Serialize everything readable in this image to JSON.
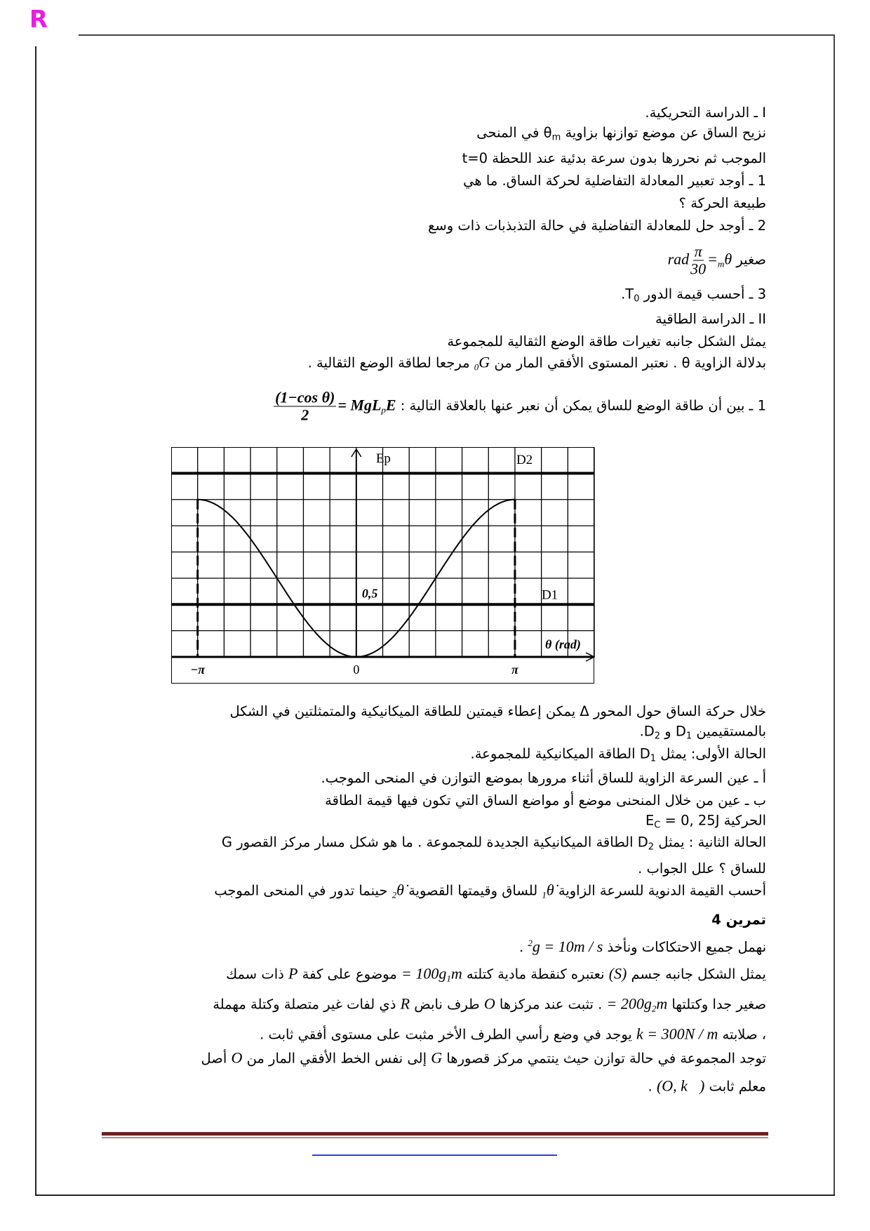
{
  "header": {
    "logo": "R"
  },
  "colors": {
    "logo": "#e81ee0",
    "footer_rule": "#6b2123",
    "link_rule": "#2a3ef0"
  },
  "lines": [
    {
      "segs": [
        {
          "k": "t",
          "v": "I ـ الدراسة التحريكية."
        }
      ]
    },
    {
      "segs": [
        {
          "k": "t",
          "v": "نزيح الساق عن موضع توازنها بزاوية "
        },
        {
          "k": "t",
          "v": "θ"
        },
        {
          "k": "sub",
          "v": "m"
        },
        {
          "k": "t",
          "v": " في المنحى"
        }
      ]
    },
    {
      "segs": [
        {
          "k": "t",
          "v": "الموجب ثم نحررها بدون سرعة بدئية عند اللحظة "
        },
        {
          "k": "t",
          "v": "t=0"
        }
      ]
    },
    {
      "segs": [
        {
          "k": "t",
          "v": "1 ـ أوجد تعبير المعادلة التفاضلية لحركة الساق. ما هي"
        }
      ]
    },
    {
      "segs": [
        {
          "k": "t",
          "v": "طبيعة الحركة ؟"
        }
      ]
    },
    {
      "segs": [
        {
          "k": "t",
          "v": "2 ـ أوجد حل للمعادلة التفاضلية في حالة التذبذبات ذات وسع"
        }
      ]
    },
    {
      "segs": [
        {
          "k": "t",
          "v": "صغير "
        },
        {
          "k": "m",
          "v": "θ"
        },
        {
          "k": "msub",
          "v": "m"
        },
        {
          "k": "m",
          "v": " = "
        },
        {
          "k": "frac",
          "num": "π",
          "den": "30"
        },
        {
          "k": "m",
          "v": "rad"
        }
      ]
    },
    {
      "segs": [
        {
          "k": "t",
          "v": "3 ـ أحسب قيمة الدور "
        },
        {
          "k": "t",
          "v": "T"
        },
        {
          "k": "sub",
          "v": "0"
        },
        {
          "k": "t",
          "v": "."
        }
      ]
    },
    {
      "segs": [
        {
          "k": "t",
          "v": "II ـ الدراسة الطاقية"
        }
      ]
    },
    {
      "segs": [
        {
          "k": "t",
          "v": "يمثل الشكل جانبه تغيرات طاقة الوضع الثقالية للمجموعة"
        }
      ]
    },
    {
      "segs": [
        {
          "k": "t",
          "v": "بدلالة الزاوية θ . نعتبر المستوى الأفقي المار من "
        },
        {
          "k": "m",
          "v": "G"
        },
        {
          "k": "msub",
          "v": "0"
        },
        {
          "k": "t",
          "v": " مرجعا لطاقة الوضع الثقالية ."
        }
      ]
    },
    {
      "segs": [
        {
          "k": "t",
          "v": "1 ـ بين أن طاقة الوضع للساق يمكن أن نعبر عنها بالعلاقة التالية : "
        },
        {
          "k": "mb",
          "v": "E"
        },
        {
          "k": "msub",
          "v": "p"
        },
        {
          "k": "mb",
          "v": " = MgL"
        },
        {
          "k": "fracb",
          "num": "(1−cos θ)",
          "den": "2"
        }
      ]
    },
    {
      "segs": [
        {
          "k": "t",
          "v": "خلال حركة الساق حول المحور Δ يمكن إعطاء قيمتين للطاقة الميكانيكية والمتمثلتين في الشكل"
        }
      ]
    },
    {
      "segs": [
        {
          "k": "t",
          "v": "بالمستقيمين D"
        },
        {
          "k": "sub",
          "v": "1"
        },
        {
          "k": "t",
          "v": " و D"
        },
        {
          "k": "sub",
          "v": "2"
        },
        {
          "k": "t",
          "v": "."
        }
      ]
    },
    {
      "segs": [
        {
          "k": "t",
          "v": "الحالة الأولى: يمثل D"
        },
        {
          "k": "sub",
          "v": "1"
        },
        {
          "k": "t",
          "v": " الطاقة الميكانيكية للمجموعة."
        }
      ]
    },
    {
      "segs": [
        {
          "k": "t",
          "v": "أ ـ عين السرعة الزاوية للساق أثناء مرورها بموضع التوازن في المنحى الموجب."
        }
      ]
    },
    {
      "segs": [
        {
          "k": "t",
          "v": "ب ـ عين من خلال المنحنى موضع أو مواضع الساق التي تكون فيها قيمة الطاقة"
        }
      ]
    },
    {
      "segs": [
        {
          "k": "t",
          "v": "الحركية    "
        },
        {
          "k": "t",
          "v": "E"
        },
        {
          "k": "sub",
          "v": "C"
        },
        {
          "k": "t",
          "v": " = 0, 25J"
        }
      ]
    },
    {
      "segs": [
        {
          "k": "t",
          "v": "الحالة الثانية : يمثل D"
        },
        {
          "k": "sub",
          "v": "2"
        },
        {
          "k": "t",
          "v": " الطاقة الميكانيكية الجديدة للمجموعة . ما هو شكل مسار مركز القصور G"
        }
      ]
    },
    {
      "segs": [
        {
          "k": "t",
          "v": "للساق ؟ علل الجواب ."
        }
      ]
    },
    {
      "segs": [
        {
          "k": "t",
          "v": "أحسب القيمة الدنوية للسرعة الزاوية "
        },
        {
          "k": "m",
          "v": "θ̇"
        },
        {
          "k": "msub",
          "v": "1"
        },
        {
          "k": "t",
          "v": " للساق وقيمتها القصوية "
        },
        {
          "k": "m",
          "v": "θ̇"
        },
        {
          "k": "msub",
          "v": "2"
        },
        {
          "k": "t",
          "v": " حينما تدور في المنحى الموجب"
        }
      ]
    },
    {
      "bold": true,
      "segs": [
        {
          "k": "t",
          "v": "تمرين 4"
        }
      ]
    },
    {
      "segs": [
        {
          "k": "t",
          "v": "نهمل جميع الاحتكاكات ونأخذ "
        },
        {
          "k": "m",
          "v": "g = 10m / s"
        },
        {
          "k": "msup",
          "v": "2"
        },
        {
          "k": "t",
          "v": " ."
        }
      ]
    },
    {
      "segs": [
        {
          "k": "t",
          "v": "يمثل الشكل جانبه جسم "
        },
        {
          "k": "m",
          "v": "(S)"
        },
        {
          "k": "t",
          "v": " نعتبره كنقطة مادية كتلته "
        },
        {
          "k": "m",
          "v": "m"
        },
        {
          "k": "msub",
          "v": "1"
        },
        {
          "k": "m",
          "v": " = 100g"
        },
        {
          "k": "t",
          "v": " موضوع على كفة "
        },
        {
          "k": "m",
          "v": "P"
        },
        {
          "k": "t",
          "v": " ذات سمك"
        }
      ]
    },
    {
      "segs": [
        {
          "k": "t",
          "v": "صغير جدا وكتلتها "
        },
        {
          "k": "m",
          "v": "m"
        },
        {
          "k": "msub",
          "v": "2"
        },
        {
          "k": "m",
          "v": " = 200g"
        },
        {
          "k": "t",
          "v": " . تثبت عند مركزها "
        },
        {
          "k": "m",
          "v": "O"
        },
        {
          "k": "t",
          "v": " طرف نابض "
        },
        {
          "k": "m",
          "v": "R"
        },
        {
          "k": "t",
          "v": " ذي لفات غير متصلة وكتلة مهملة"
        }
      ]
    },
    {
      "segs": [
        {
          "k": "t",
          "v": "، صلابته "
        },
        {
          "k": "m",
          "v": "k = 300N / m"
        },
        {
          "k": "t",
          "v": " يوجد في وضع رأسي الطرف الأخر مثبت على مستوى أفقي ثابت ."
        }
      ]
    },
    {
      "segs": [
        {
          "k": "t",
          "v": "توجد المجموعة في حالة توازن حيث ينتمي مركز قصورها "
        },
        {
          "k": "m",
          "v": "G"
        },
        {
          "k": "t",
          "v": " إلى نفس الخط الأفقي المار من "
        },
        {
          "k": "m",
          "v": "O"
        },
        {
          "k": "t",
          "v": " أصل"
        }
      ]
    },
    {
      "segs": [
        {
          "k": "t",
          "v": "معلم ثابت "
        },
        {
          "k": "m",
          "v": "(O, k⃗)"
        },
        {
          "k": "t",
          "v": " ."
        }
      ]
    }
  ],
  "chart_data": {
    "type": "line",
    "ylabel": "Ep",
    "xlabel": "θ (rad)",
    "x_tick_labels": [
      "−π",
      "0",
      "π"
    ],
    "y_tick_label": "0,5",
    "x_range": [
      -3.665,
      4.712
    ],
    "y_range": [
      0,
      2
    ],
    "grid": true,
    "curve": {
      "formula": "0.75(1−cos θ)",
      "x": [
        -3.1416,
        -2.3562,
        -1.5708,
        -0.7854,
        0,
        0.7854,
        1.5708,
        2.3562,
        3.1416
      ],
      "y": [
        1.5,
        1.28,
        0.75,
        0.22,
        0,
        0.22,
        0.75,
        1.28,
        1.5
      ]
    },
    "hlines": [
      {
        "name": "D1",
        "y": 0.5
      },
      {
        "name": "D2",
        "y": 1.75
      }
    ],
    "vlines_dashed": [
      -3.1416,
      3.1416
    ]
  }
}
